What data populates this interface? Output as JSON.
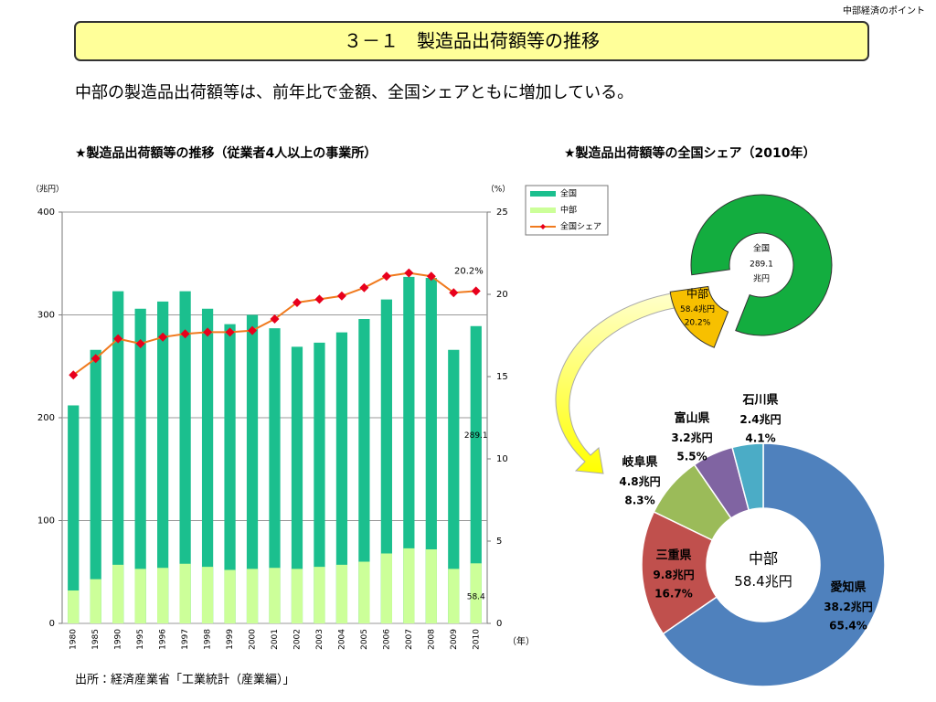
{
  "header_note": "中部経済のポイント",
  "title": "３－１　製造品出荷額等の推移",
  "subtitle": "中部の製造品出荷額等は、前年比で金額、全国シェアともに増加している。",
  "source": "出所：経済産業省「工業統計（産業編）」",
  "chart_data": [
    {
      "type": "bar",
      "title": "★製造品出荷額等の推移（従業者4人以上の事業所）",
      "ylabel": "（兆円）",
      "y2label": "（%）",
      "xlabel": "（年）",
      "categories": [
        "1980",
        "1985",
        "1990",
        "1995",
        "1996",
        "1997",
        "1998",
        "1999",
        "2000",
        "2001",
        "2002",
        "2003",
        "2004",
        "2005",
        "2006",
        "2007",
        "2008",
        "2009",
        "2010"
      ],
      "series": [
        {
          "name": "全国",
          "color": "#1bbf8e",
          "data_labels": "last",
          "values": [
            212,
            266,
            323,
            306,
            313,
            323,
            306,
            291,
            300,
            287,
            269,
            273,
            283,
            296,
            315,
            337,
            336,
            266,
            289.1
          ]
        },
        {
          "name": "中部",
          "color": "#ccff99",
          "data_labels": "last",
          "values": [
            32,
            43,
            57,
            53,
            54,
            58,
            55,
            52,
            53,
            54,
            53,
            55,
            57,
            60,
            68,
            73,
            72,
            53,
            58.4
          ]
        },
        {
          "name": "全国シェア",
          "type": "line",
          "axis": "y2",
          "color": "#f07a1e",
          "marker_color": "#e8001c",
          "data_labels": "last",
          "values": [
            15.1,
            16.1,
            17.3,
            17.0,
            17.4,
            17.6,
            17.7,
            17.7,
            17.8,
            18.5,
            19.5,
            19.7,
            19.9,
            20.4,
            21.1,
            21.3,
            21.1,
            20.1,
            20.2
          ],
          "value_labels": [
            null,
            null,
            null,
            null,
            null,
            null,
            null,
            null,
            null,
            null,
            null,
            null,
            null,
            null,
            null,
            null,
            null,
            null,
            "20.2%"
          ]
        }
      ],
      "ylim": [
        0,
        400
      ],
      "yticks": [
        0,
        100,
        200,
        300,
        400
      ],
      "y2lim": [
        0,
        25
      ],
      "y2ticks": [
        0,
        5,
        10,
        15,
        20,
        25
      ],
      "grid": true,
      "legend": "top-right"
    },
    {
      "type": "donut",
      "title": "★製造品出荷額等の全国シェア（2010年）",
      "categories": [
        "全国",
        "中部"
      ],
      "values": [
        289.1,
        58.4
      ],
      "unit": "兆円",
      "share_label": "20.2%",
      "colors": [
        "#13ad3f",
        "#f7c000"
      ],
      "explode": [
        false,
        true
      ]
    },
    {
      "type": "donut",
      "center_title": "中部",
      "total": 58.4,
      "unit": "兆円",
      "categories": [
        "愛知県",
        "三重県",
        "岐阜県",
        "富山県",
        "石川県"
      ],
      "values": [
        38.2,
        9.8,
        4.8,
        3.2,
        2.4
      ],
      "percent_labels": [
        "65.4%",
        "16.7%",
        "8.3%",
        "5.5%",
        "4.1%"
      ],
      "colors": [
        "#4f81bd",
        "#c0504d",
        "#9bbb59",
        "#8064a2",
        "#4bacc6"
      ]
    }
  ]
}
